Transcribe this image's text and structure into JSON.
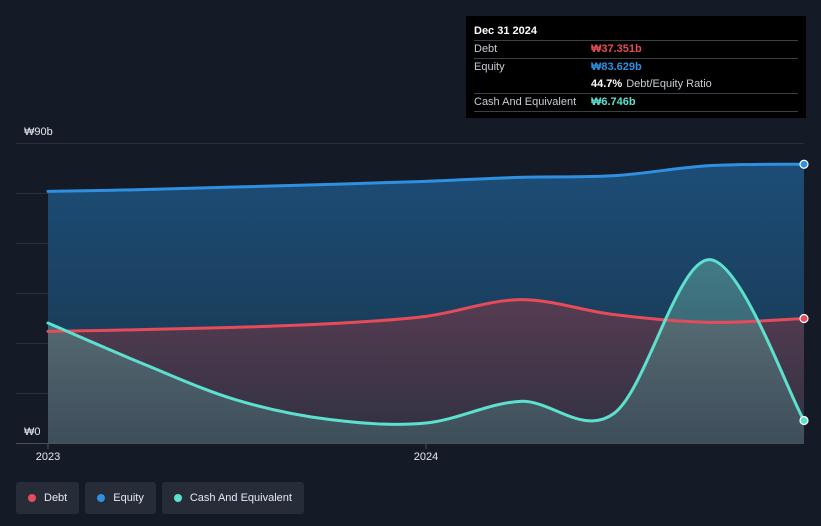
{
  "colors": {
    "debt": "#e64b5a",
    "equity": "#2f8fe0",
    "cash": "#5ee0cf",
    "background": "#151b26"
  },
  "tooltip": {
    "date": "Dec 31 2024",
    "rows": [
      {
        "label": "Debt",
        "value": "₩37.351b",
        "color": "#e64b5a"
      },
      {
        "label": "Equity",
        "value": "₩83.629b",
        "color": "#2f8fe0"
      },
      {
        "ratio_value": "44.7%",
        "ratio_label": "Debt/Equity Ratio"
      },
      {
        "label": "Cash And Equivalent",
        "value": "₩6.746b",
        "color": "#5ee0cf"
      }
    ]
  },
  "legend": [
    {
      "label": "Debt",
      "color": "#e64b5a"
    },
    {
      "label": "Equity",
      "color": "#2f8fe0"
    },
    {
      "label": "Cash And Equivalent",
      "color": "#5ee0cf"
    }
  ],
  "chart_data": {
    "type": "area",
    "x_start": "2023-01-01",
    "x_end": "2024-12-31",
    "x_ticks": [
      "2023",
      "2024"
    ],
    "x_tick_dates": [
      "2023-01-01",
      "2024-01-01"
    ],
    "ylim": [
      0,
      90
    ],
    "y_tick_labels": [
      "₩90b",
      "₩0"
    ],
    "y_tick_values": [
      90,
      0
    ],
    "grid": true,
    "legend_position": "bottom-left",
    "series": [
      {
        "name": "Equity",
        "color": "#2f8fe0",
        "points": [
          {
            "x": "2023-01-01",
            "y": 75.5
          },
          {
            "x": "2023-04-01",
            "y": 76.0
          },
          {
            "x": "2023-07-01",
            "y": 76.8
          },
          {
            "x": "2023-10-01",
            "y": 77.6
          },
          {
            "x": "2024-01-01",
            "y": 78.5
          },
          {
            "x": "2024-04-01",
            "y": 79.7
          },
          {
            "x": "2024-07-01",
            "y": 80.2
          },
          {
            "x": "2024-10-01",
            "y": 83.2
          },
          {
            "x": "2024-12-31",
            "y": 83.629
          }
        ]
      },
      {
        "name": "Debt",
        "color": "#e64b5a",
        "points": [
          {
            "x": "2023-01-01",
            "y": 33.5
          },
          {
            "x": "2023-04-01",
            "y": 34.0
          },
          {
            "x": "2023-07-01",
            "y": 34.7
          },
          {
            "x": "2023-10-01",
            "y": 35.8
          },
          {
            "x": "2024-01-01",
            "y": 38.0
          },
          {
            "x": "2024-04-01",
            "y": 43.0
          },
          {
            "x": "2024-07-01",
            "y": 38.5
          },
          {
            "x": "2024-10-01",
            "y": 36.2
          },
          {
            "x": "2024-12-31",
            "y": 37.351
          }
        ]
      },
      {
        "name": "Cash And Equivalent",
        "color": "#5ee0cf",
        "points": [
          {
            "x": "2023-01-01",
            "y": 36.0
          },
          {
            "x": "2023-04-01",
            "y": 24.0
          },
          {
            "x": "2023-07-01",
            "y": 13.0
          },
          {
            "x": "2023-10-01",
            "y": 7.0
          },
          {
            "x": "2024-01-01",
            "y": 6.0
          },
          {
            "x": "2024-04-01",
            "y": 12.5
          },
          {
            "x": "2024-07-01",
            "y": 9.0
          },
          {
            "x": "2024-10-01",
            "y": 55.0
          },
          {
            "x": "2024-12-31",
            "y": 6.746
          }
        ]
      }
    ]
  }
}
